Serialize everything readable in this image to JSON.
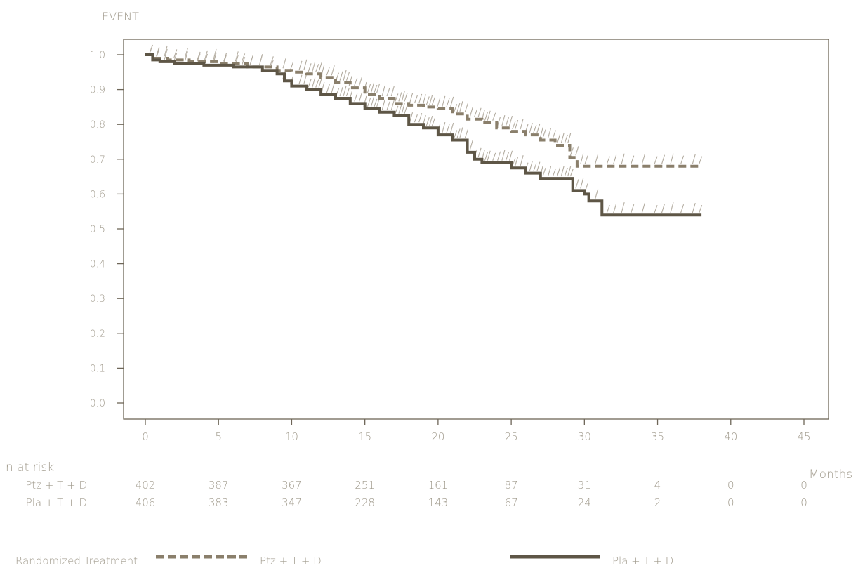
{
  "chart_data": {
    "type": "line",
    "title": "",
    "ylabel": "EVENT",
    "xlabel": "Months",
    "xlim": [
      0,
      45
    ],
    "ylim": [
      0,
      1
    ],
    "xticks": [
      "0",
      "5",
      "10",
      "15",
      "20",
      "25",
      "30",
      "35",
      "40",
      "45"
    ],
    "yticks": [
      "0.0",
      "0.1",
      "0.2",
      "0.3",
      "0.4",
      "0.5",
      "0.6",
      "0.7",
      "0.8",
      "0.9",
      "1.0"
    ],
    "grid": false,
    "legend_title": "Randomized Treatment",
    "legend_position": "bottom",
    "series": [
      {
        "name": "Ptz + T + D",
        "style": "dashed",
        "color": "#8a7f6b",
        "points": [
          [
            0,
            1.0
          ],
          [
            0.5,
            0.99
          ],
          [
            1.5,
            0.985
          ],
          [
            3,
            0.98
          ],
          [
            5,
            0.975
          ],
          [
            7,
            0.965
          ],
          [
            9,
            0.955
          ],
          [
            10,
            0.95
          ],
          [
            11,
            0.945
          ],
          [
            12,
            0.935
          ],
          [
            13,
            0.92
          ],
          [
            14,
            0.905
          ],
          [
            15,
            0.885
          ],
          [
            16,
            0.875
          ],
          [
            17,
            0.86
          ],
          [
            18,
            0.855
          ],
          [
            19,
            0.85
          ],
          [
            20,
            0.845
          ],
          [
            21,
            0.83
          ],
          [
            22,
            0.815
          ],
          [
            23,
            0.805
          ],
          [
            24,
            0.79
          ],
          [
            25,
            0.78
          ],
          [
            26,
            0.77
          ],
          [
            27,
            0.755
          ],
          [
            28,
            0.74
          ],
          [
            29,
            0.705
          ],
          [
            29.5,
            0.68
          ],
          [
            31,
            0.68
          ],
          [
            33,
            0.68
          ],
          [
            38,
            0.68
          ]
        ]
      },
      {
        "name": "Pla + T + D",
        "style": "solid",
        "color": "#5e5646",
        "points": [
          [
            0,
            1.0
          ],
          [
            0.5,
            0.985
          ],
          [
            1,
            0.98
          ],
          [
            2,
            0.975
          ],
          [
            4,
            0.97
          ],
          [
            6,
            0.965
          ],
          [
            8,
            0.955
          ],
          [
            9,
            0.945
          ],
          [
            9.5,
            0.925
          ],
          [
            10,
            0.91
          ],
          [
            11,
            0.9
          ],
          [
            12,
            0.885
          ],
          [
            13,
            0.875
          ],
          [
            14,
            0.86
          ],
          [
            15,
            0.845
          ],
          [
            16,
            0.835
          ],
          [
            17,
            0.825
          ],
          [
            18,
            0.8
          ],
          [
            19,
            0.79
          ],
          [
            20,
            0.77
          ],
          [
            21,
            0.755
          ],
          [
            22,
            0.72
          ],
          [
            22.5,
            0.7
          ],
          [
            23,
            0.69
          ],
          [
            25,
            0.675
          ],
          [
            26,
            0.66
          ],
          [
            27,
            0.645
          ],
          [
            28,
            0.645
          ],
          [
            29,
            0.645
          ],
          [
            29.2,
            0.61
          ],
          [
            30,
            0.6
          ],
          [
            30.3,
            0.58
          ],
          [
            31,
            0.58
          ],
          [
            31.2,
            0.54
          ],
          [
            33,
            0.54
          ],
          [
            38,
            0.54
          ]
        ]
      }
    ],
    "risk_table": {
      "title": "n at risk",
      "times": [
        0,
        5,
        10,
        15,
        20,
        25,
        30,
        35,
        40,
        45
      ],
      "rows": [
        {
          "label": "Ptz + T + D",
          "values": [
            "402",
            "387",
            "367",
            "251",
            "161",
            "87",
            "31",
            "4",
            "0",
            "0"
          ]
        },
        {
          "label": "Pla + T + D",
          "values": [
            "406",
            "383",
            "347",
            "228",
            "143",
            "67",
            "24",
            "2",
            "0",
            "0"
          ]
        }
      ]
    }
  }
}
